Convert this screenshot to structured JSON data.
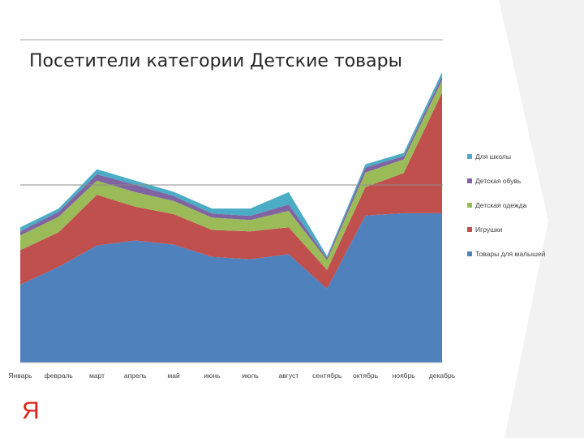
{
  "slide": {
    "logo": "Я",
    "colors": {
      "corner": "#f2f2f2",
      "rule": "#a6a6a6",
      "logo": "#e0201b"
    }
  },
  "chart_data": {
    "type": "area",
    "stacked": true,
    "title": "Посетители категории Детские товары",
    "xlabel": "",
    "ylabel": "",
    "y_axis_labels_visible": false,
    "grid": "single horizontal gridline",
    "legend_position": "right",
    "categories": [
      "Январь",
      "февраль",
      "март",
      "апрель",
      "май",
      "июнь",
      "июль",
      "август",
      "сентябрь",
      "октябрь",
      "ноябрь",
      "декабрь"
    ],
    "ylim": [
      0,
      100
    ],
    "series": [
      {
        "name": "Товары для малышей",
        "color": "#4f81bd",
        "values": [
          26.6,
          32.7,
          40,
          41.7,
          40.3,
          36.1,
          35.3,
          37,
          25.2,
          50.2,
          51,
          51
        ]
      },
      {
        "name": "Игрушки",
        "color": "#c0504d",
        "values": [
          11.8,
          11.8,
          17.3,
          11.5,
          10.4,
          9.2,
          9.5,
          9.2,
          6.4,
          9.7,
          13.7,
          41.2
        ]
      },
      {
        "name": "Детская одежда",
        "color": "#9bbb59",
        "values": [
          5,
          5.3,
          4.8,
          5,
          4.5,
          4.2,
          3.9,
          5.6,
          3.4,
          5,
          4.7,
          4.2
        ]
      },
      {
        "name": "Детская обувь",
        "color": "#8064a2",
        "values": [
          1.4,
          1.7,
          2.2,
          2.5,
          1.7,
          1.4,
          1.4,
          2.2,
          0.8,
          1.7,
          1.1,
          1.4
        ]
      },
      {
        "name": "Для школы",
        "color": "#4bacc6",
        "values": [
          1.4,
          1.1,
          1.7,
          1.4,
          1.4,
          1.7,
          2.5,
          4.2,
          0.6,
          1.1,
          1.1,
          1.4
        ]
      }
    ]
  }
}
